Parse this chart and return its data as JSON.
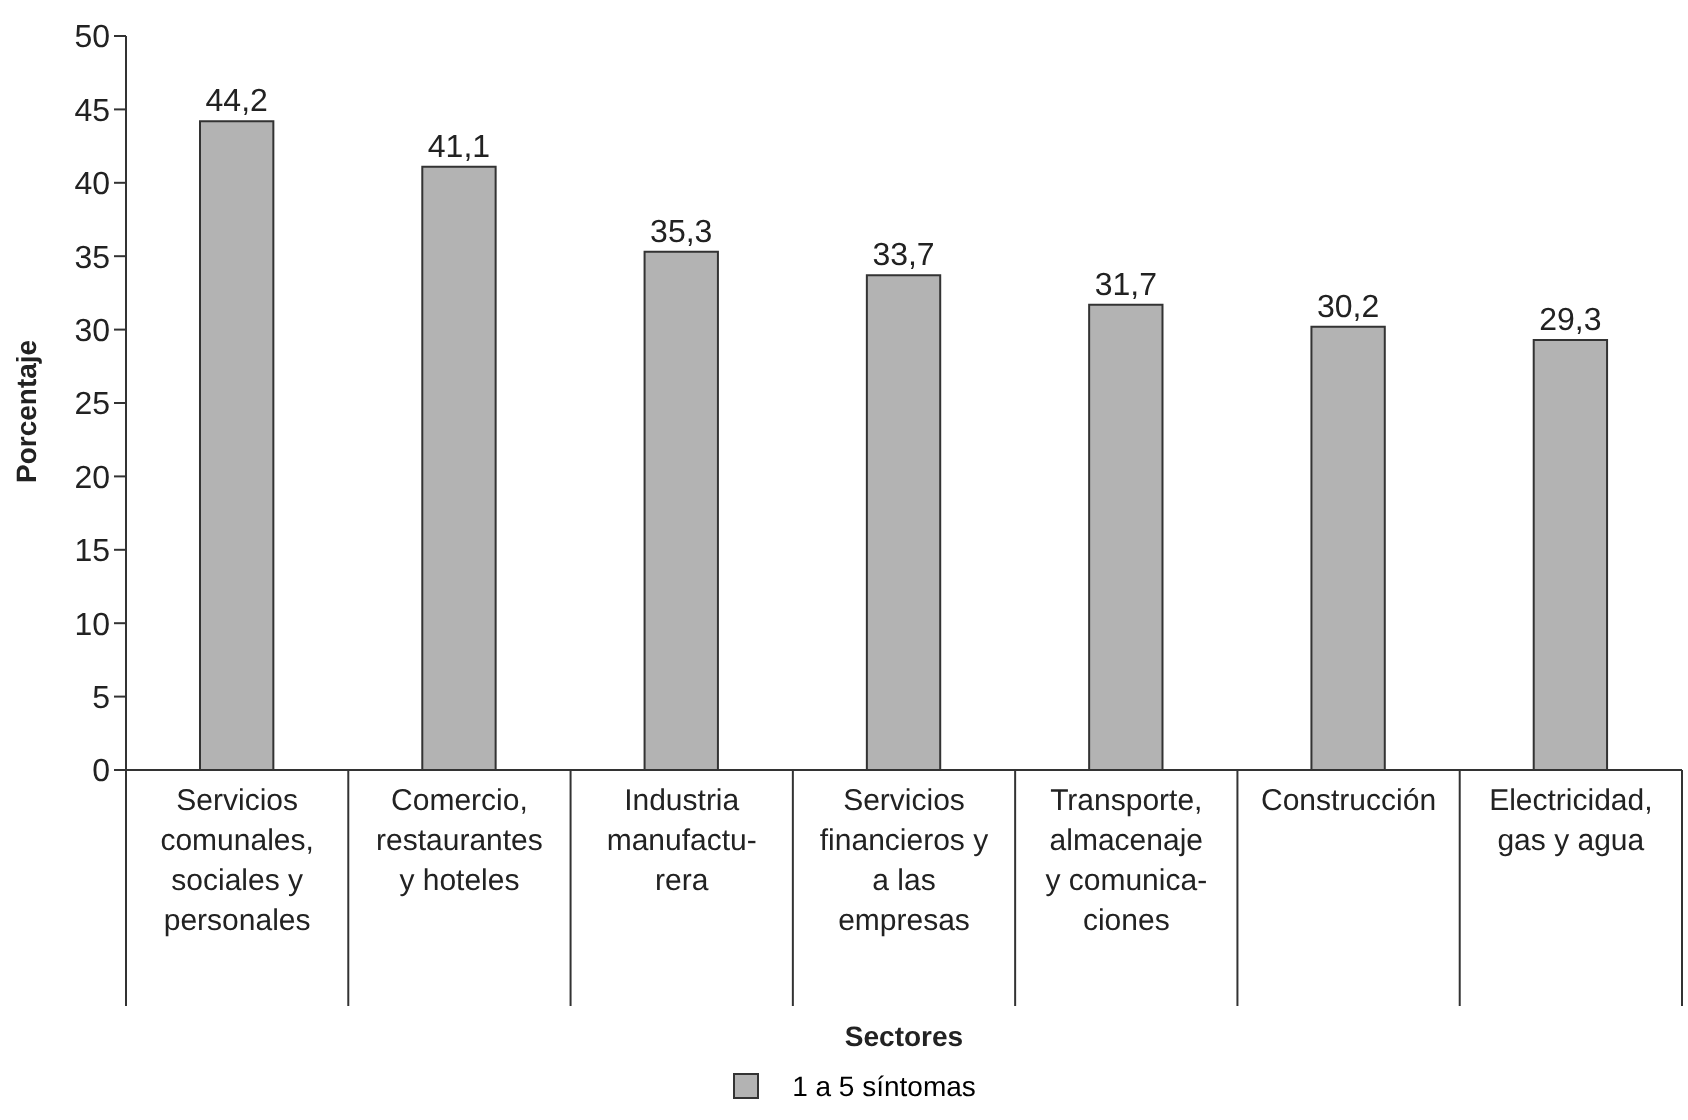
{
  "chart_data": {
    "type": "bar",
    "xlabel": "Sectores",
    "ylabel": "Porcentaje",
    "categories": [
      "Servicios\ncomunales,\nsociales y\npersonales",
      "Comercio,\nrestaurantes\ny hoteles",
      "Industria\nmanufactu-\nrera",
      "Servicios\nfinancieros y\na las\nempresas",
      "Transporte,\nalmacenaje\ny comunica-\nciones",
      "Construcción",
      "Electricidad,\ngas y agua"
    ],
    "series": [
      {
        "name": "1 a 5 síntomas",
        "color": "#b3b3b3",
        "values": [
          44.2,
          41.1,
          35.3,
          33.7,
          31.7,
          30.2,
          29.3
        ],
        "value_labels": [
          "44,2",
          "41,1",
          "35,3",
          "33,7",
          "31,7",
          "30,2",
          "29,3"
        ]
      }
    ],
    "ylim": [
      0,
      50
    ],
    "yticks": [
      0,
      5,
      10,
      15,
      20,
      25,
      30,
      35,
      40,
      45,
      50
    ],
    "grid": false,
    "legend": "bottom"
  }
}
